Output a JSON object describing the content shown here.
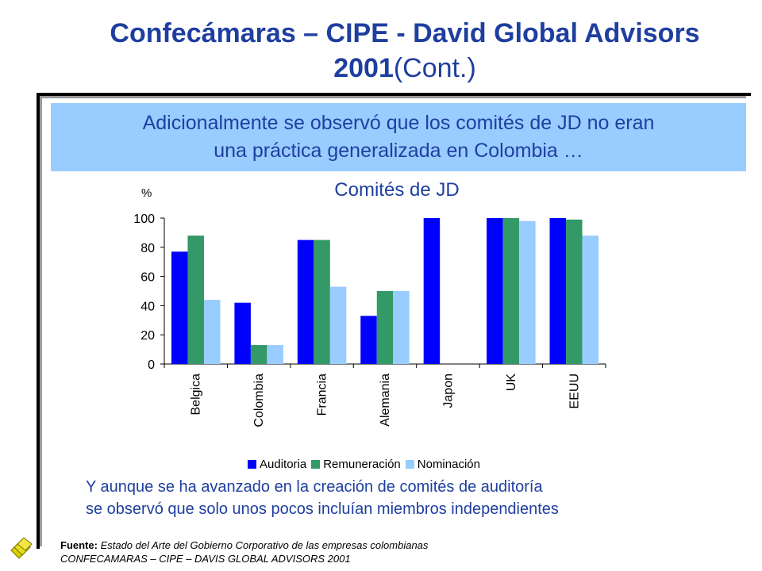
{
  "title": {
    "main": "Confecámaras – CIPE - David Global Advisors 2001",
    "suffix": "(Cont.)"
  },
  "callout": {
    "line1": "Adicionalmente se observó que los comités de JD no eran",
    "line2": "una práctica generalizada en Colombia …"
  },
  "chart_data": {
    "type": "bar",
    "title": "Comités de JD",
    "ylabel": "%",
    "xlabel": "",
    "ylim": [
      0,
      100
    ],
    "yticks": [
      0,
      20,
      40,
      60,
      80,
      100
    ],
    "categories": [
      "Belgica",
      "Colombia",
      "Francia",
      "Alemania",
      "Japon",
      "UK",
      "EEUU"
    ],
    "series": [
      {
        "name": "Auditoria",
        "color": "#0000ff",
        "values": [
          77,
          42,
          85,
          33,
          100,
          100,
          100
        ]
      },
      {
        "name": "Remuneración",
        "color": "#339966",
        "values": [
          88,
          13,
          85,
          50,
          0,
          100,
          99
        ]
      },
      {
        "name": "Nominación",
        "color": "#99ccff",
        "values": [
          44,
          13,
          53,
          50,
          0,
          98,
          88
        ]
      }
    ],
    "legend": "bottom"
  },
  "note": {
    "line1": "Y aunque se ha avanzado en la creación de comités de auditoría",
    "line2": "se observó que solo unos pocos incluían miembros independientes"
  },
  "footer": {
    "label": "Fuente:",
    "source": " Estado del Arte del Gobierno Corporativo de las empresas colombianas",
    "line2": "CONFECAMARAS – CIPE – DAVIS GLOBAL ADVISORS 2001"
  },
  "logo_icon": "stacked-diamonds-logo"
}
